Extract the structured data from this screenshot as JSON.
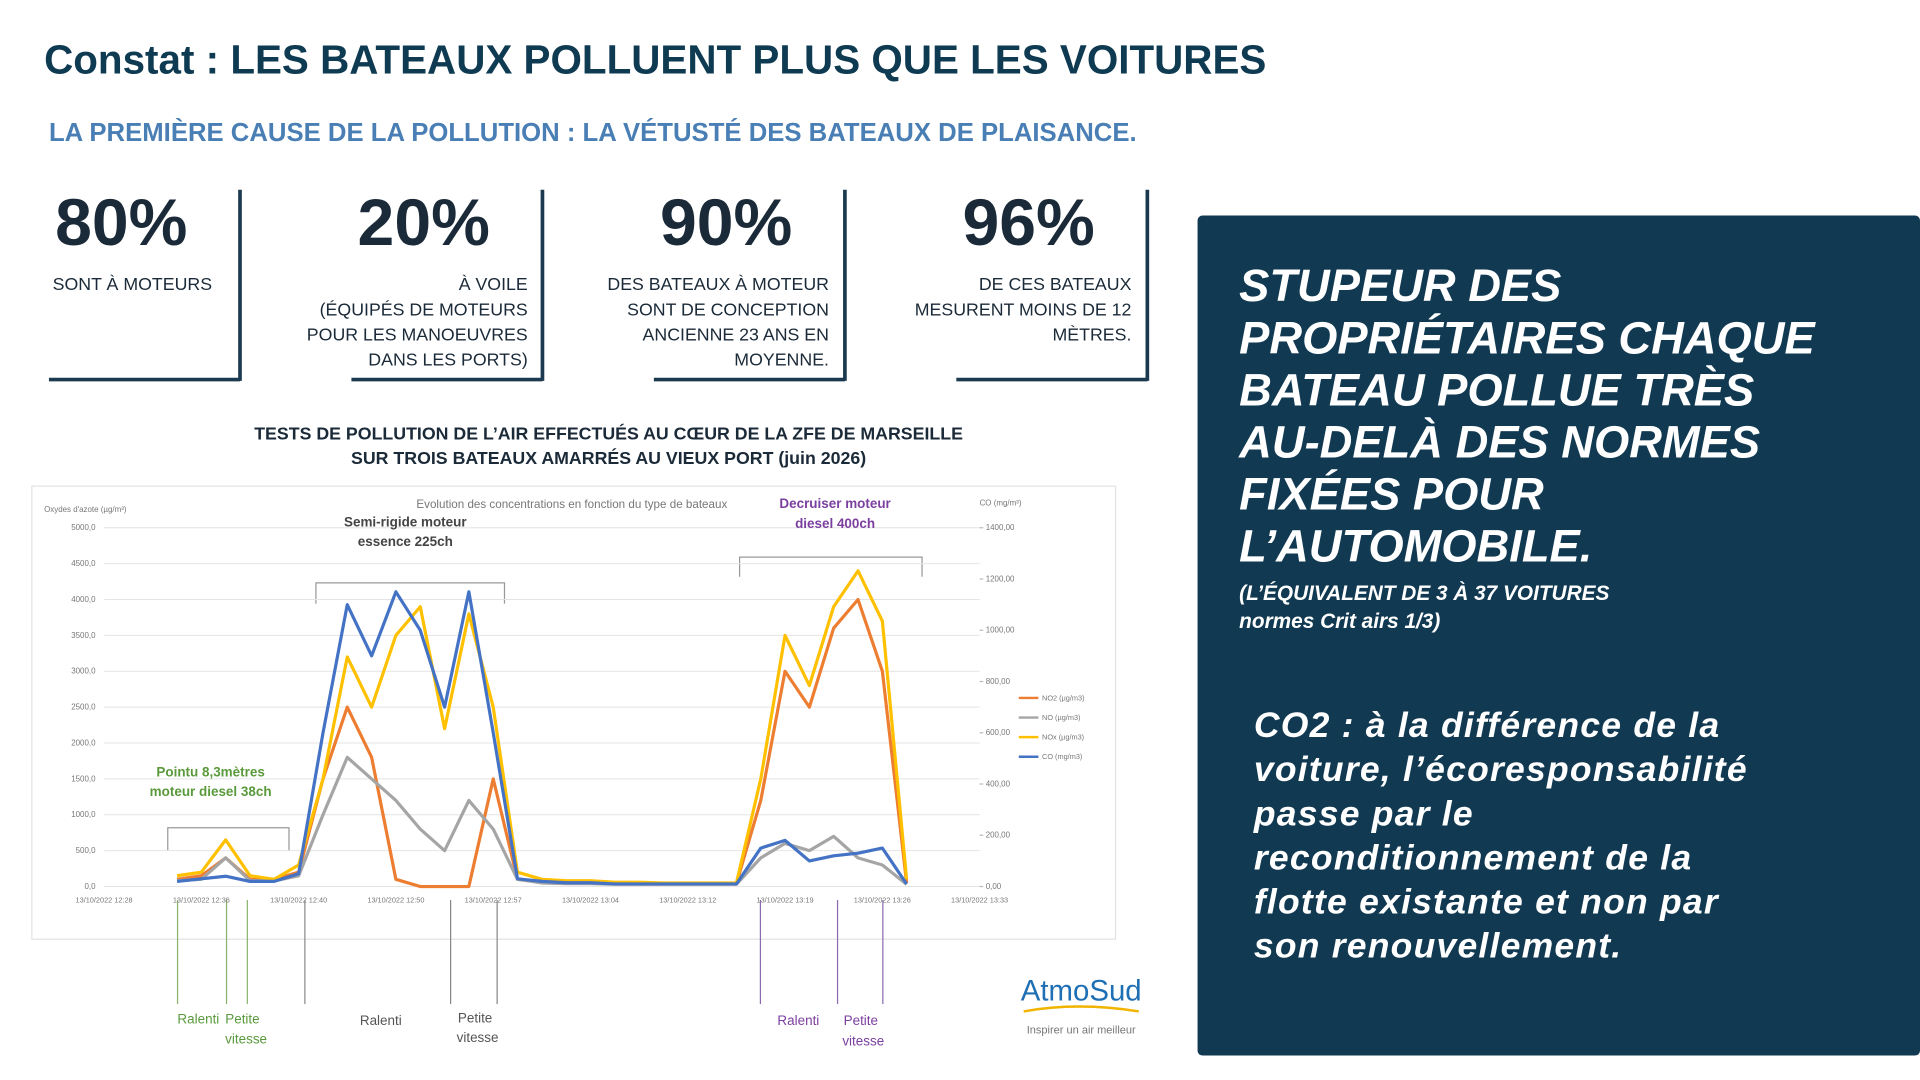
{
  "header": {
    "title": "Constat : LES BATEAUX POLLUENT PLUS QUE LES VOITURES",
    "subtitle": "LA PREMIÈRE CAUSE DE LA POLLUTION : LA VÉTUSTÉ DES BATEAUX DE PLAISANCE."
  },
  "stats": [
    {
      "value": "80%",
      "lines": [
        "SONT À MOTEURS"
      ]
    },
    {
      "value": "20%",
      "lines": [
        "À VOILE",
        "(ÉQUIPÉS DE MOTEURS",
        "POUR LES MANOEUVRES",
        "DANS LES PORTS)"
      ]
    },
    {
      "value": "90%",
      "lines": [
        "DES BATEAUX À MOTEUR",
        "SONT DE CONCEPTION",
        "ANCIENNE 23 ANS EN",
        "MOYENNE."
      ]
    },
    {
      "value": "96%",
      "lines": [
        "DE CES BATEAUX",
        "MESURENT MOINS DE 12",
        "MÈTRES."
      ]
    }
  ],
  "chart_heading": [
    "TESTS DE POLLUTION DE L’AIR EFFECTUÉS AU CŒUR DE LA ZFE DE MARSEILLE",
    "SUR TROIS BATEAUX AMARRÉS AU VIEUX PORT (juin 2026)"
  ],
  "panel": {
    "headline": [
      "STUPEUR DES",
      "PROPRIÉTAIRES CHAQUE",
      "BATEAU POLLUE TRÈS",
      "AU-DELÀ DES NORMES",
      "FIXÉES POUR",
      "L’AUTOMOBILE."
    ],
    "note": [
      "(L’ÉQUIVALENT DE 3 À 37 VOITURES",
      "normes Crit airs 1/3)"
    ],
    "body": [
      "CO2 : à la différence de la",
      "voiture, l’écoresponsabilité",
      "passe par le",
      "reconditionnement de la",
      "flotte existante et non par",
      "son renouvellement."
    ]
  },
  "chart_data": {
    "type": "line",
    "title": "Evolution des concentrations en fonction du type de bateaux",
    "y_label": "Oxydes d'azote (µg/m³)",
    "y2_label": "CO (mg/m³)",
    "categories": [
      "13/10/2022 12:28",
      null,
      null,
      null,
      "13/10/2022 12:36",
      null,
      null,
      null,
      "13/10/2022 12:40",
      null,
      null,
      null,
      "13/10/2022 12:50",
      null,
      null,
      null,
      "13/10/2022 12:57",
      null,
      null,
      null,
      "13/10/2022 13:04",
      null,
      null,
      null,
      "13/10/2022 13:12",
      null,
      null,
      null,
      "13/10/2022 13:19",
      null,
      null,
      null,
      "13/10/2022 13:26",
      null,
      null,
      null,
      "13/10/2022 13:33"
    ],
    "ylim": [
      0,
      5000
    ],
    "yticks": [
      {
        "value": 0,
        "label": "0,0"
      },
      {
        "value": 500,
        "label": "500,0"
      },
      {
        "value": 1000,
        "label": "1000,0"
      },
      {
        "value": 1500,
        "label": "1500,0"
      },
      {
        "value": 2000,
        "label": "2000,0"
      },
      {
        "value": 2500,
        "label": "2500,0"
      },
      {
        "value": 3000,
        "label": "3000,0"
      },
      {
        "value": 3500,
        "label": "3500,0"
      },
      {
        "value": 4000,
        "label": "4000,0"
      },
      {
        "value": 4500,
        "label": "4500,0"
      },
      {
        "value": 5000,
        "label": "5000,0"
      }
    ],
    "y2lim": [
      0,
      1400
    ],
    "y2ticks": [
      {
        "value": 0,
        "label": "0,00"
      },
      {
        "value": 200,
        "label": "200,00"
      },
      {
        "value": 400,
        "label": "400,00"
      },
      {
        "value": 600,
        "label": "600,00"
      },
      {
        "value": 800,
        "label": "800,00"
      },
      {
        "value": 1000,
        "label": "1000,00"
      },
      {
        "value": 1200,
        "label": "1200,00"
      },
      {
        "value": 1400,
        "label": "1400,00"
      }
    ],
    "grid": true,
    "legend": "right",
    "series": [
      {
        "name": "NO2 (µg/m3)",
        "color": "#ed7d31",
        "values": [
          null,
          null,
          null,
          100,
          150,
          400,
          100,
          100,
          200,
          1500,
          2500,
          1800,
          100,
          0,
          0,
          0,
          1500,
          100,
          60,
          50,
          50,
          40,
          40,
          40,
          40,
          40,
          40,
          1200,
          3000,
          2500,
          3600,
          4000,
          3000,
          50,
          null,
          null,
          null
        ]
      },
      {
        "name": "NO (µg/m3)",
        "color": "#a5a5a5",
        "values": [
          null,
          null,
          null,
          80,
          100,
          400,
          80,
          80,
          150,
          1000,
          1800,
          1500,
          1200,
          800,
          500,
          1200,
          800,
          100,
          50,
          40,
          40,
          30,
          30,
          30,
          30,
          30,
          30,
          400,
          600,
          500,
          700,
          400,
          300,
          30,
          null,
          null,
          null
        ]
      },
      {
        "name": "NOx (µg/m3)",
        "color": "#ffc000",
        "values": [
          null,
          null,
          null,
          150,
          200,
          650,
          150,
          100,
          300,
          1500,
          3200,
          2500,
          3500,
          3900,
          2200,
          3800,
          2500,
          200,
          100,
          80,
          80,
          60,
          60,
          50,
          50,
          50,
          50,
          1500,
          3500,
          2800,
          3900,
          4400,
          3700,
          100,
          null,
          null,
          null
        ]
      },
      {
        "name": "CO (mg/m3)",
        "color": "#4472c4",
        "axis": "y2",
        "values": [
          null,
          null,
          null,
          20,
          30,
          40,
          20,
          20,
          50,
          600,
          1100,
          900,
          1150,
          1000,
          700,
          1150,
          600,
          30,
          20,
          15,
          15,
          10,
          10,
          10,
          10,
          10,
          10,
          150,
          180,
          100,
          120,
          130,
          150,
          10,
          null,
          null,
          null
        ]
      }
    ],
    "annotations": [
      "Semi-rigide moteur",
      "essence 225ch",
      "Decruiser moteur",
      "diesel 400ch",
      "Pointu 8,3mètres",
      "moteur diesel 38ch"
    ],
    "phases": [
      "Ralenti",
      "Petite",
      "vitesse",
      "Ralenti",
      "Petite",
      "vitesse",
      "Ralenti",
      "Petite",
      "vitesse"
    ],
    "source": [
      "AtmoSud",
      "Inspirer un air meilleur"
    ]
  }
}
